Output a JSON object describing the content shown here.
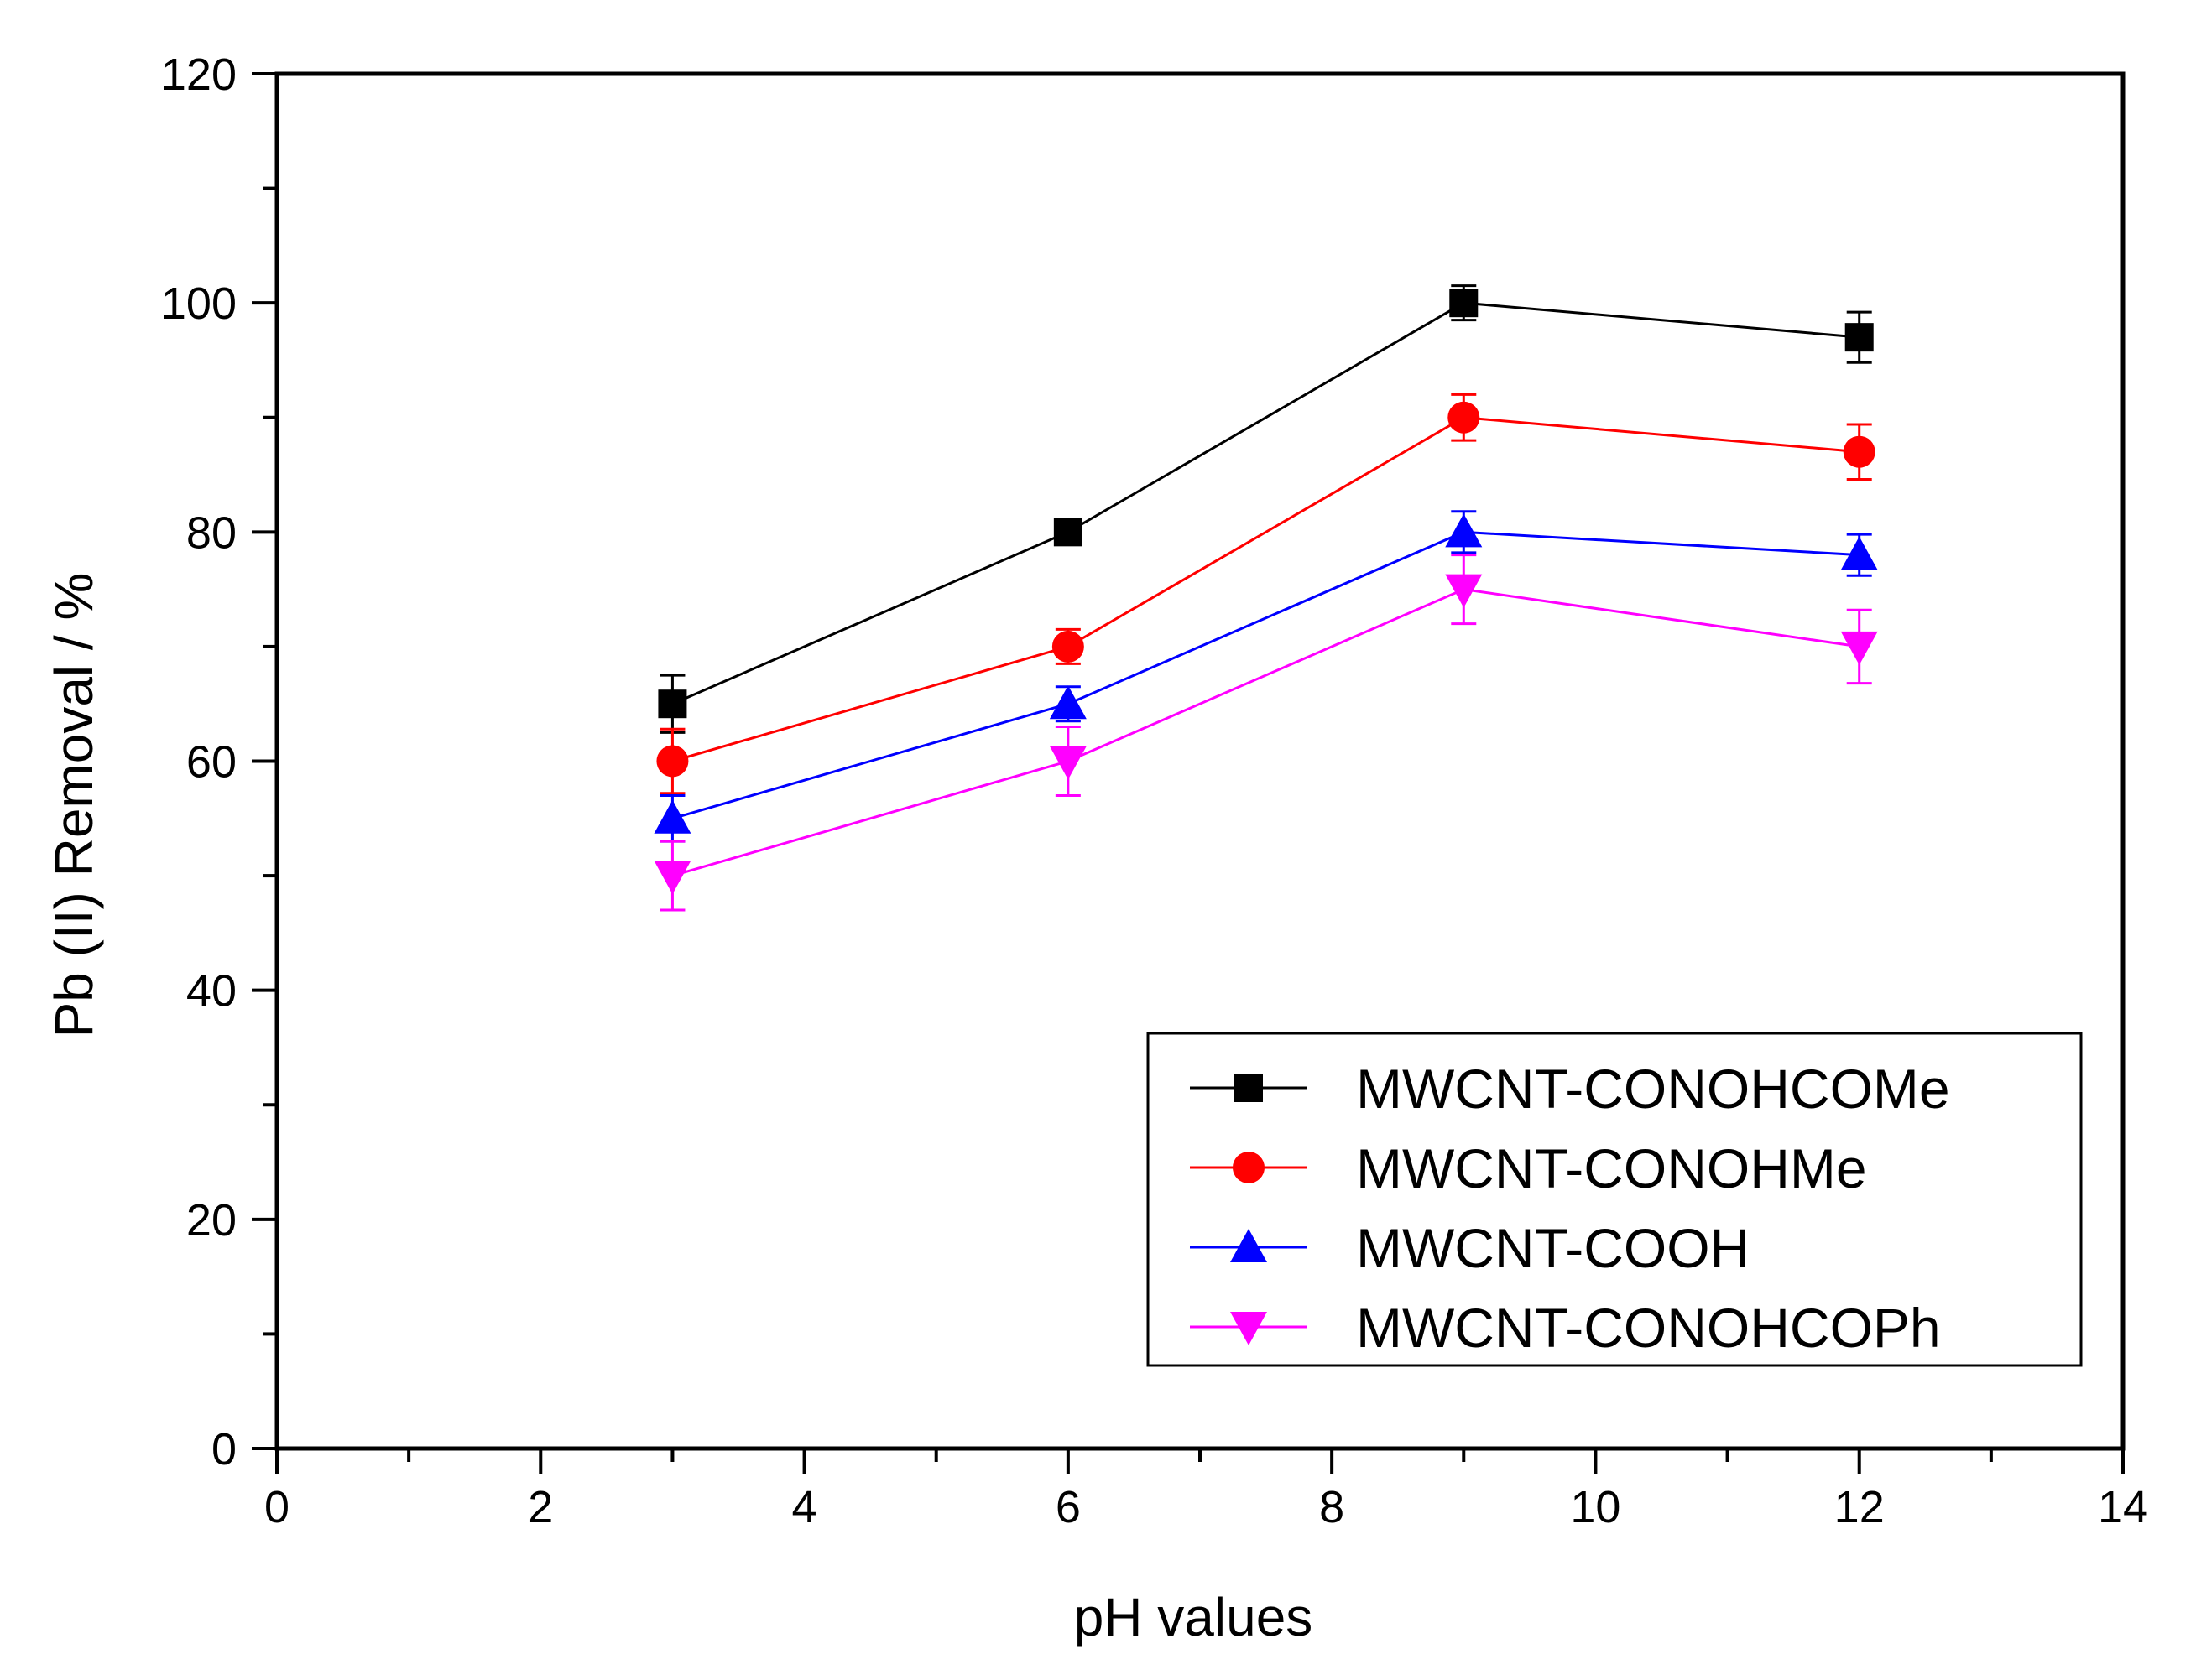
{
  "chart_data": {
    "type": "line",
    "title": "",
    "xlabel": "pH values",
    "ylabel": "Pb (II) Removal / %",
    "xlim": [
      0,
      14
    ],
    "ylim": [
      0,
      120
    ],
    "xticks": [
      0,
      2,
      4,
      6,
      8,
      10,
      12,
      14
    ],
    "xtick_labels": [
      "0",
      "2",
      "4",
      "6",
      "8",
      "10",
      "12",
      "14"
    ],
    "yticks": [
      0,
      20,
      40,
      60,
      80,
      100,
      120
    ],
    "ytick_labels": [
      "0",
      "20",
      "40",
      "60",
      "80",
      "100",
      "120"
    ],
    "x_minor_step": 1,
    "y_minor_step": 10,
    "grid": false,
    "legend_position": "bottom-right",
    "x": [
      3,
      6,
      9,
      12
    ],
    "series": [
      {
        "name": "MWCNT-CONOHCOMe",
        "values": [
          65,
          80,
          100,
          97
        ],
        "errors": [
          2.5,
          1.0,
          1.5,
          2.2
        ],
        "color": "#000000",
        "marker": "square"
      },
      {
        "name": "MWCNT-CONOHMe",
        "values": [
          60,
          70,
          90,
          87
        ],
        "errors": [
          2.8,
          1.5,
          2.0,
          2.4
        ],
        "color": "#ff0000",
        "marker": "circle"
      },
      {
        "name": "MWCNT-COOH",
        "values": [
          55,
          65,
          80,
          78
        ],
        "errors": [
          2.0,
          1.5,
          1.8,
          1.8
        ],
        "color": "#0000ff",
        "marker": "triangle-up"
      },
      {
        "name": "MWCNT-CONOHCOPh",
        "values": [
          50,
          60,
          75,
          70
        ],
        "errors": [
          3.0,
          3.0,
          3.0,
          3.2
        ],
        "color": "#ff00ff",
        "marker": "triangle-down"
      }
    ]
  }
}
